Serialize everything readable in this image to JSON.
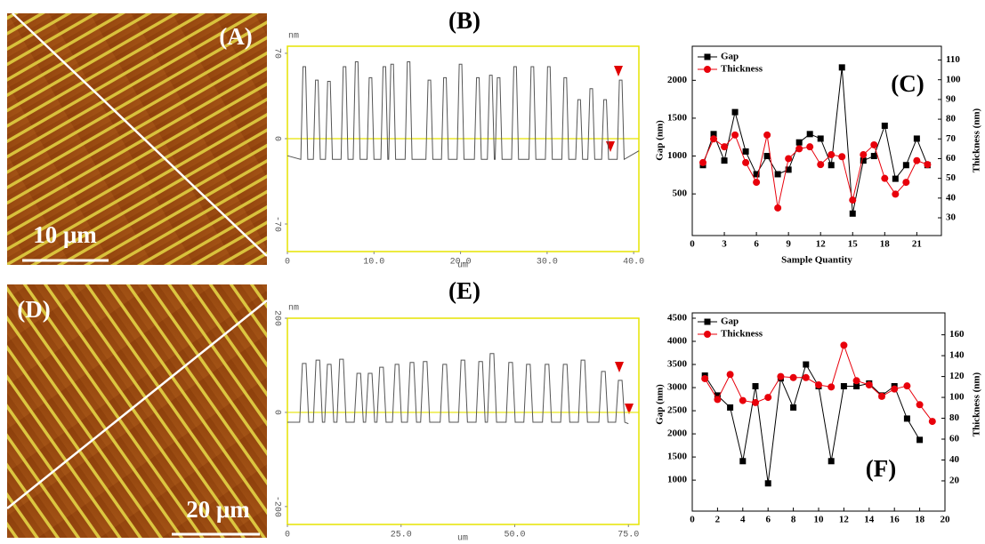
{
  "panels": [
    {
      "label": "(A)",
      "scale_bar": "10 μm"
    },
    {
      "label": "(D)",
      "scale_bar": "20 μm"
    }
  ],
  "chart_data": [
    {
      "type": "line",
      "title": "(B)",
      "y_unit": "nm",
      "x_unit": "um",
      "zero_line": true,
      "xlim": [
        0,
        40.6
      ],
      "ylim": [
        -92.6,
        75.8
      ],
      "xticks": [
        0,
        {
          "value": 10,
          "label": "10.0"
        },
        {
          "value": 20,
          "label": "20.0"
        },
        {
          "value": 30,
          "label": "30.0"
        },
        {
          "value": 40,
          "label": "40.0"
        }
      ],
      "yticks": [
        -70,
        0,
        70
      ],
      "series": [
        {
          "color": "#555555",
          "x": [
            0,
            1.55,
            1.8,
            2.1,
            2.35,
            3.0,
            3.25,
            3.55,
            3.8,
            4.4,
            4.65,
            4.95,
            5.2,
            6.2,
            6.45,
            6.75,
            7.0,
            7.6,
            7.85,
            8.15,
            8.4,
            9.2,
            9.45,
            9.75,
            10.0,
            10.8,
            11.05,
            11.35,
            11.6,
            11.7,
            11.95,
            12.25,
            12.5,
            13.6,
            13.85,
            14.15,
            14.4,
            16.0,
            16.25,
            16.55,
            16.8,
            17.8,
            18.05,
            18.35,
            18.6,
            19.6,
            19.85,
            20.15,
            20.4,
            21.6,
            21.85,
            22.15,
            22.4,
            23.1,
            23.35,
            23.65,
            23.9,
            24.0,
            24.25,
            24.55,
            24.8,
            25.9,
            26.15,
            26.45,
            26.7,
            27.9,
            28.15,
            28.45,
            28.7,
            29.8,
            30.05,
            30.35,
            30.6,
            31.7,
            31.95,
            32.25,
            32.5,
            33.3,
            33.55,
            33.85,
            34.1,
            34.7,
            34.95,
            35.25,
            35.5,
            36.3,
            36.55,
            36.85,
            37.1,
            38.1,
            38.35,
            38.65,
            38.9,
            40.6
          ],
          "values": [
            -14,
            -17,
            59,
            59,
            -17,
            -17,
            48,
            48,
            -17,
            -17,
            47,
            47,
            -17,
            -17,
            59,
            59,
            -17,
            -17,
            63,
            63,
            -17,
            -17,
            50,
            50,
            -17,
            -17,
            59,
            59,
            -17,
            -17,
            61,
            61,
            -17,
            -17,
            63,
            63,
            -17,
            -17,
            48,
            48,
            -17,
            -17,
            50,
            50,
            -17,
            -17,
            61,
            61,
            -17,
            -17,
            50,
            50,
            -17,
            -17,
            52,
            52,
            -17,
            -17,
            50,
            50,
            -17,
            -17,
            59,
            59,
            -17,
            -17,
            59,
            59,
            -17,
            -17,
            59,
            59,
            -17,
            -17,
            50,
            50,
            -17,
            -17,
            32,
            32,
            -17,
            -17,
            41,
            41,
            -17,
            -17,
            32,
            32,
            -17,
            -17,
            48,
            48,
            -17,
            -10
          ]
        }
      ]
    },
    {
      "type": "line",
      "title": "(C)",
      "xlabel": "Sample Quantity",
      "ylabel": "Gap (nm)",
      "y2label": "Thickness (nm)",
      "legend": "upper left",
      "xlim": [
        0,
        23.3
      ],
      "ylim": [
        -50,
        2450
      ],
      "y2lim": [
        21,
        117
      ],
      "xticks": [
        0,
        3,
        6,
        9,
        12,
        15,
        18,
        21
      ],
      "yticks": [
        500,
        1000,
        1500,
        2000
      ],
      "y2ticks": [
        30,
        40,
        50,
        60,
        70,
        80,
        90,
        100,
        110
      ],
      "series": [
        {
          "name": "Gap",
          "color": "#000000",
          "marker": "square",
          "x": [
            1,
            2,
            3,
            4,
            5,
            6,
            7,
            8,
            9,
            10,
            11,
            12,
            13,
            14,
            15,
            16,
            17,
            18,
            19,
            20,
            21,
            22
          ],
          "values": [
            880,
            1290,
            940,
            1580,
            1060,
            760,
            1000,
            760,
            820,
            1180,
            1290,
            1230,
            880,
            2170,
            240,
            940,
            1000,
            1400,
            700,
            880,
            1230,
            880
          ]
        },
        {
          "name": "Thickness",
          "color": "#e8000b",
          "marker": "circle",
          "axis": "y2",
          "x": [
            1,
            2,
            3,
            4,
            5,
            6,
            7,
            8,
            9,
            10,
            11,
            12,
            13,
            14,
            15,
            16,
            17,
            18,
            19,
            20,
            21,
            22
          ],
          "values": [
            58,
            70,
            66,
            72,
            58,
            48,
            72,
            35,
            60,
            65,
            66,
            57,
            62,
            61,
            39,
            62,
            67,
            50,
            42,
            48,
            59,
            57
          ]
        }
      ]
    },
    {
      "type": "line",
      "title": "(E)",
      "y_unit": "nm",
      "x_unit": "um",
      "zero_line": true,
      "xlim": [
        0,
        77.3
      ],
      "ylim": [
        -238,
        200
      ],
      "xticks": [
        0,
        {
          "value": 25,
          "label": "25.0"
        },
        {
          "value": 50,
          "label": "50.0"
        },
        {
          "value": 75,
          "label": "75.0"
        }
      ],
      "yticks": [
        -200,
        0,
        200
      ],
      "series": [
        {
          "color": "#555555",
          "x": [
            0,
            2.7,
            3.3,
            4.1,
            4.7,
            5.7,
            6.3,
            7.1,
            7.7,
            8.2,
            8.8,
            9.6,
            10.2,
            10.9,
            11.5,
            12.3,
            12.9,
            14.7,
            15.3,
            16.1,
            16.7,
            17.2,
            17.8,
            18.6,
            19.2,
            19.7,
            20.3,
            21.1,
            21.7,
            23.1,
            23.7,
            24.5,
            25.1,
            26.4,
            27.0,
            27.8,
            28.4,
            29.3,
            29.9,
            30.7,
            31.3,
            33.6,
            34.2,
            35.0,
            35.6,
            37.6,
            38.2,
            39.0,
            39.6,
            41.5,
            42.1,
            42.9,
            43.5,
            44.0,
            44.6,
            45.4,
            46.0,
            48.1,
            48.7,
            49.5,
            50.1,
            52.0,
            52.6,
            53.4,
            54.0,
            56.1,
            56.7,
            57.5,
            58.1,
            60.1,
            60.7,
            61.5,
            62.1,
            64.0,
            64.6,
            65.4,
            66.0,
            68.5,
            69.1,
            69.9,
            70.5,
            72.2,
            72.8,
            73.6,
            74.2,
            75
          ],
          "values": [
            -21,
            -21,
            104,
            104,
            -21,
            -21,
            111,
            111,
            -21,
            -21,
            102,
            102,
            -21,
            -21,
            113,
            113,
            -21,
            -21,
            83,
            83,
            -21,
            -21,
            83,
            83,
            -21,
            -21,
            96,
            96,
            -21,
            -21,
            102,
            102,
            -21,
            -21,
            106,
            106,
            -21,
            -21,
            108,
            108,
            -21,
            -21,
            102,
            102,
            -21,
            -21,
            111,
            111,
            -21,
            -21,
            108,
            108,
            -21,
            -21,
            125,
            125,
            -21,
            -21,
            106,
            106,
            -21,
            -21,
            102,
            102,
            -21,
            -21,
            102,
            102,
            -21,
            -21,
            102,
            102,
            -21,
            -21,
            111,
            111,
            -21,
            -21,
            87,
            87,
            -21,
            -21,
            68,
            68,
            -21,
            -24
          ]
        }
      ]
    },
    {
      "type": "line",
      "title": "(F)",
      "ylabel": "Gap (nm)",
      "y2label": "Thickness (nm)",
      "legend": "upper left",
      "xlim": [
        0,
        20
      ],
      "ylim": [
        330,
        4615
      ],
      "y2lim": [
        -9,
        181
      ],
      "xticks": [
        0,
        2,
        4,
        6,
        8,
        10,
        12,
        14,
        16,
        18,
        20
      ],
      "yticks": [
        1000,
        1500,
        2000,
        2500,
        3000,
        3500,
        4000,
        4500
      ],
      "y2ticks": [
        20,
        40,
        60,
        80,
        100,
        120,
        140,
        160
      ],
      "series": [
        {
          "name": "Gap",
          "color": "#000000",
          "marker": "square",
          "x": [
            1,
            2,
            3,
            4,
            5,
            6,
            7,
            8,
            9,
            10,
            11,
            12,
            13,
            14,
            15,
            16,
            17,
            18
          ],
          "values": [
            3260,
            2830,
            2570,
            1410,
            3030,
            930,
            3200,
            2570,
            3500,
            3030,
            1410,
            3030,
            3030,
            3090,
            2830,
            3030,
            2330,
            1870
          ]
        },
        {
          "name": "Thickness",
          "color": "#e8000b",
          "marker": "circle",
          "axis": "y2",
          "x": [
            1,
            2,
            3,
            4,
            5,
            6,
            7,
            8,
            9,
            10,
            11,
            12,
            13,
            14,
            15,
            16,
            17,
            18,
            19
          ],
          "values": [
            118,
            98,
            122,
            97,
            95,
            100,
            120,
            119,
            119,
            112,
            110,
            150,
            116,
            112,
            101,
            108,
            111,
            93,
            77
          ]
        }
      ]
    }
  ]
}
